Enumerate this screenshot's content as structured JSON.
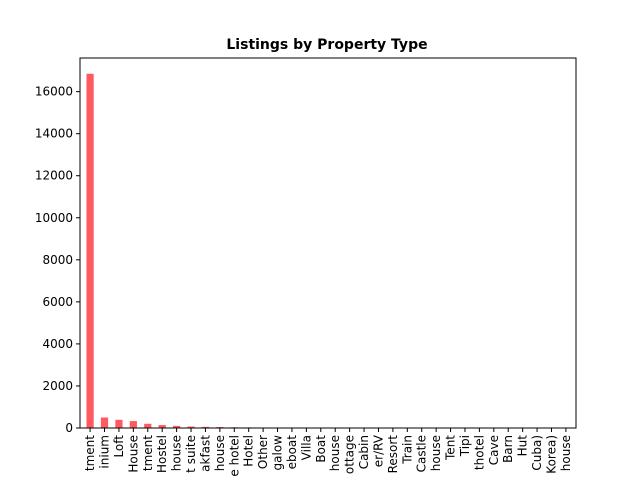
{
  "chart_data": {
    "type": "bar",
    "title": "Listings by Property Type",
    "xlabel": "",
    "ylabel": "",
    "ylim": [
      0,
      17600
    ],
    "yticks": [
      0,
      2000,
      4000,
      6000,
      8000,
      10000,
      12000,
      14000,
      16000
    ],
    "grid": false,
    "bar_color": "#ff5a5f",
    "categories": [
      "tment",
      "inium",
      "Loft",
      "House",
      "tment",
      "Hostel",
      "house",
      "t suite",
      "akfast",
      "house",
      "e hotel",
      "Hotel",
      "Other",
      "galow",
      "eboat",
      "Villa",
      "Boat",
      "house",
      "ottage",
      "Cabin",
      "er/RV",
      "Resort",
      "Train",
      "Castle",
      "house",
      "Tent",
      "Tipi",
      "thotel",
      "Cave",
      "Barn",
      "Hut",
      "Cuba)",
      "Korea)",
      "house"
    ],
    "values": [
      16850,
      500,
      390,
      330,
      200,
      140,
      100,
      70,
      55,
      45,
      35,
      28,
      22,
      18,
      15,
      12,
      10,
      9,
      8,
      7,
      6,
      5,
      4,
      4,
      3,
      3,
      2,
      2,
      2,
      1,
      1,
      1,
      1,
      1
    ]
  }
}
